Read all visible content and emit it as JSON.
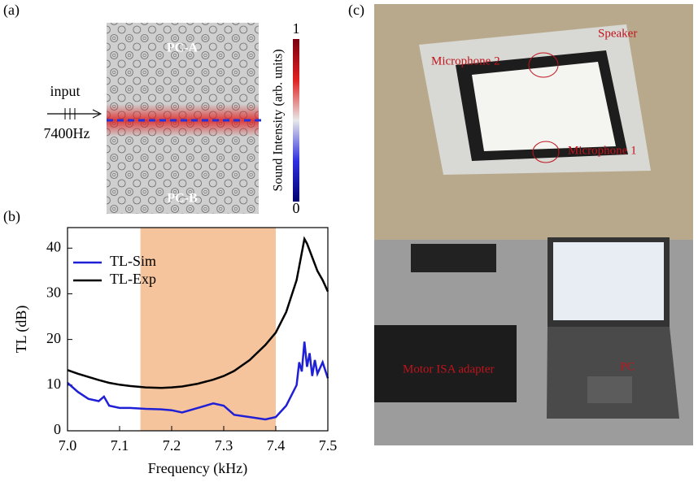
{
  "panels": {
    "a": {
      "label": "(a)",
      "top_text": "PC-A",
      "bottom_text": "PC-B",
      "input": "input",
      "frequency": "7400Hz",
      "colorbar_label": "Sound Intensity (arb. units)",
      "colorbar_max": "1",
      "colorbar_min": "0"
    },
    "b": {
      "label": "(b)"
    },
    "c": {
      "label": "(c)",
      "labels": [
        "Speaker",
        "Microphone 2",
        "Microphone 1",
        "Motor ISA adapter",
        "PC"
      ]
    }
  },
  "chart_data": {
    "type": "line",
    "xlabel": "Frequency (kHz)",
    "ylabel": "TL (dB)",
    "x": [
      7.0,
      7.02,
      7.04,
      7.06,
      7.07,
      7.08,
      7.1,
      7.12,
      7.15,
      7.18,
      7.2,
      7.22,
      7.25,
      7.28,
      7.3,
      7.32,
      7.35,
      7.38,
      7.4,
      7.42,
      7.44,
      7.445,
      7.45,
      7.455,
      7.46,
      7.465,
      7.47,
      7.475,
      7.48,
      7.49,
      7.5
    ],
    "series": [
      {
        "name": "TL-Sim",
        "color": "#1f1fd6",
        "values": [
          10.5,
          8.5,
          7,
          6.5,
          7.5,
          5.5,
          5,
          5,
          4.8,
          4.7,
          4.5,
          4,
          5,
          6,
          5.5,
          3.5,
          3,
          2.5,
          3,
          5.5,
          10,
          15,
          13,
          19.5,
          14,
          17,
          12,
          15.5,
          12.5,
          15,
          11.5
        ]
      },
      {
        "name": "TL-Exp",
        "color": "#000000",
        "values": [
          13.3,
          12.5,
          11.8,
          11.1,
          10.8,
          10.5,
          10.1,
          9.8,
          9.5,
          9.4,
          9.5,
          9.7,
          10.3,
          11.2,
          12,
          13.1,
          15.5,
          18.8,
          21.5,
          26,
          33,
          36,
          39,
          42,
          41,
          39.5,
          38,
          36.5,
          35,
          33,
          30.5
        ]
      }
    ],
    "shaded_region": [
      7.14,
      7.4
    ],
    "shaded_color": "#f6c49c",
    "xlim": [
      7.0,
      7.5
    ],
    "xticks": [
      {
        "value": 7.0,
        "label": "7.0"
      },
      7.1,
      7.2,
      7.3,
      7.4,
      7.5
    ],
    "ylim": [
      0,
      44.5
    ],
    "yticks": [
      0,
      10,
      20,
      30,
      40
    ],
    "legend": "upper-left"
  }
}
